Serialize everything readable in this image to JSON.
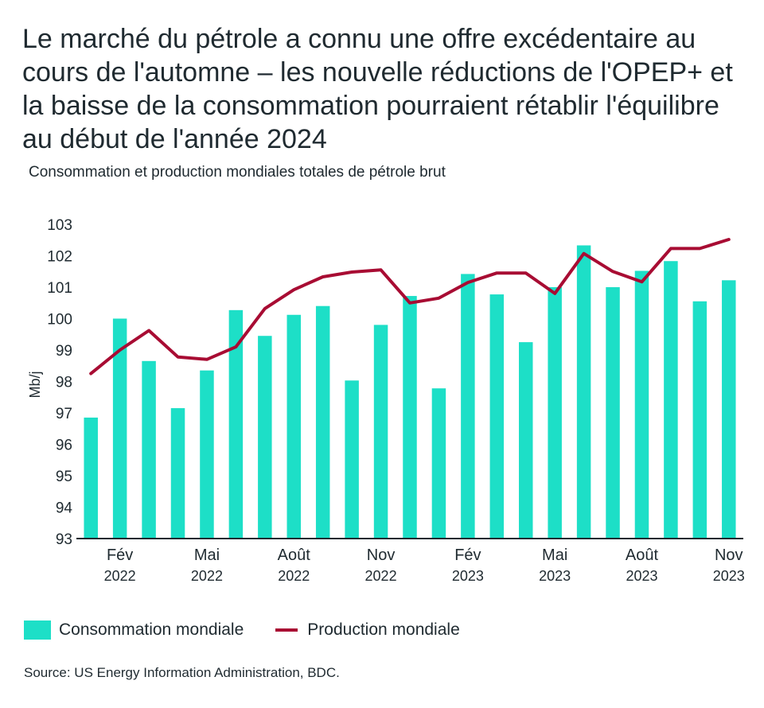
{
  "chart_data": {
    "type": "bar",
    "title": "Le marché du pétrole a connu une offre excédentaire au cours de l'automne – les nouvelle réductions de l'OPEP+ et la baisse de la consommation pourraient rétablir l'équilibre au début de l'année 2024",
    "subtitle": "Consommation et production mondiales totales de pétrole brut",
    "ylabel": "Mb/j",
    "xlabel": "",
    "ylim": [
      93,
      103
    ],
    "yticks": [
      93,
      94,
      95,
      96,
      97,
      98,
      99,
      100,
      101,
      102,
      103
    ],
    "grid": false,
    "legend_position": "bottom-left",
    "x_tick_labels": [
      {
        "index": 1,
        "month": "Fév",
        "year": "2022"
      },
      {
        "index": 4,
        "month": "Mai",
        "year": "2022"
      },
      {
        "index": 7,
        "month": "Août",
        "year": "2022"
      },
      {
        "index": 10,
        "month": "Nov",
        "year": "2022"
      },
      {
        "index": 13,
        "month": "Fév",
        "year": "2023"
      },
      {
        "index": 16,
        "month": "Mai",
        "year": "2023"
      },
      {
        "index": 19,
        "month": "Août",
        "year": "2023"
      },
      {
        "index": 22,
        "month": "Nov",
        "year": "2023"
      }
    ],
    "x": [
      "2022-01",
      "2022-02",
      "2022-03",
      "2022-04",
      "2022-05",
      "2022-06",
      "2022-07",
      "2022-08",
      "2022-09",
      "2022-10",
      "2022-11",
      "2022-12",
      "2023-01",
      "2023-02",
      "2023-03",
      "2023-04",
      "2023-05",
      "2023-06",
      "2023-07",
      "2023-08",
      "2023-09",
      "2023-10",
      "2023-11"
    ],
    "series": [
      {
        "name": "Consommation mondiale",
        "type": "bar",
        "color": "#1ddfc7",
        "values": [
          96.85,
          100.0,
          98.65,
          97.15,
          98.35,
          100.27,
          99.45,
          100.12,
          100.4,
          98.03,
          99.8,
          100.72,
          97.78,
          101.42,
          100.77,
          99.25,
          101.0,
          102.33,
          101.0,
          101.52,
          101.83,
          100.55,
          101.22
        ]
      },
      {
        "name": "Production mondiale",
        "type": "line",
        "color": "#a80c33",
        "values": [
          98.25,
          99.0,
          99.62,
          98.78,
          98.7,
          99.1,
          100.32,
          100.92,
          101.33,
          101.48,
          101.55,
          100.5,
          100.65,
          101.15,
          101.45,
          101.45,
          100.8,
          102.07,
          101.5,
          101.17,
          102.23,
          102.23,
          102.52
        ]
      }
    ]
  },
  "source": "Source: US Energy Information Administration, BDC.",
  "colors": {
    "text": "#1f2a30",
    "axis": "#1f2a30"
  }
}
